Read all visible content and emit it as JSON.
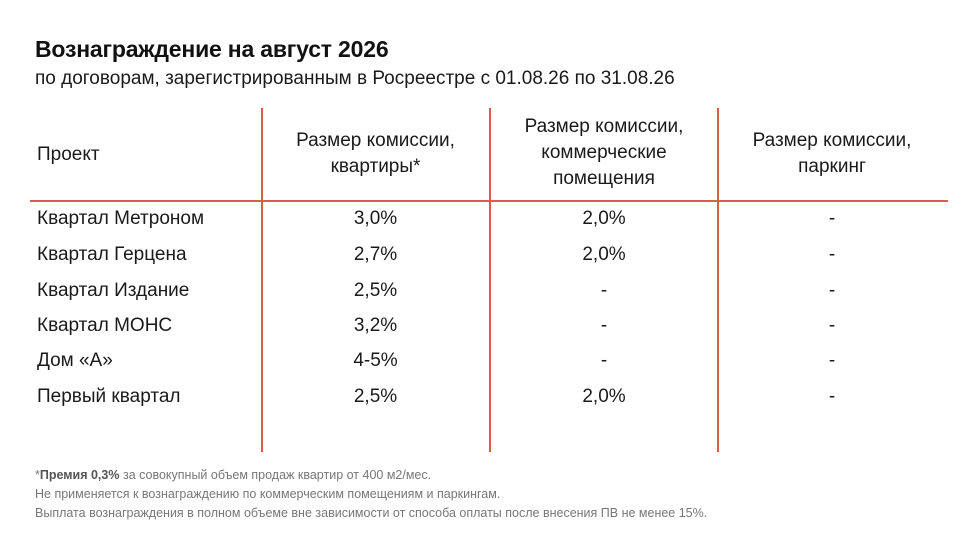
{
  "title": "Вознаграждение на август 2026",
  "subtitle": "по договорам, зарегистрированным в Росреестре с 01.08.26 по 31.08.26",
  "table": {
    "headers": [
      "Проект",
      "Размер комиссии,\nквартиры*",
      "Размер комиссии,\nкоммерческие\nпомещения",
      "Размер комиссии,\nпаркинг"
    ],
    "rows": [
      {
        "project": "Квартал Метроном",
        "apartments": "3,0%",
        "commercial": "2,0%",
        "parking": "-"
      },
      {
        "project": "Квартал Герцена",
        "apartments": "2,7%",
        "commercial": "2,0%",
        "parking": "-"
      },
      {
        "project": "Квартал Издание",
        "apartments": "2,5%",
        "commercial": "-",
        "parking": "-"
      },
      {
        "project": "Квартал МОНС",
        "apartments": "3,2%",
        "commercial": "-",
        "parking": "-"
      },
      {
        "project": "Дом «А»",
        "apartments": "4-5%",
        "commercial": "-",
        "parking": "-"
      },
      {
        "project": "Первый квартал",
        "apartments": "2,5%",
        "commercial": "2,0%",
        "parking": "-"
      }
    ]
  },
  "footnotes": {
    "line1_prefix": "*",
    "line1_bold": "Премия 0,3%",
    "line1_rest": " за совокупный объем продаж квартир от 400 м2/мес.",
    "line2": "Не применяется к вознаграждению по коммерческим помещениям и паркингам.",
    "line3": "Выплата вознаграждения в полном объеме вне зависимости от способа оплаты после внесения ПВ не менее 15%."
  },
  "colors": {
    "accent_line": "#e05a4a",
    "text": "#1a1a1a",
    "footnote": "#777777"
  }
}
